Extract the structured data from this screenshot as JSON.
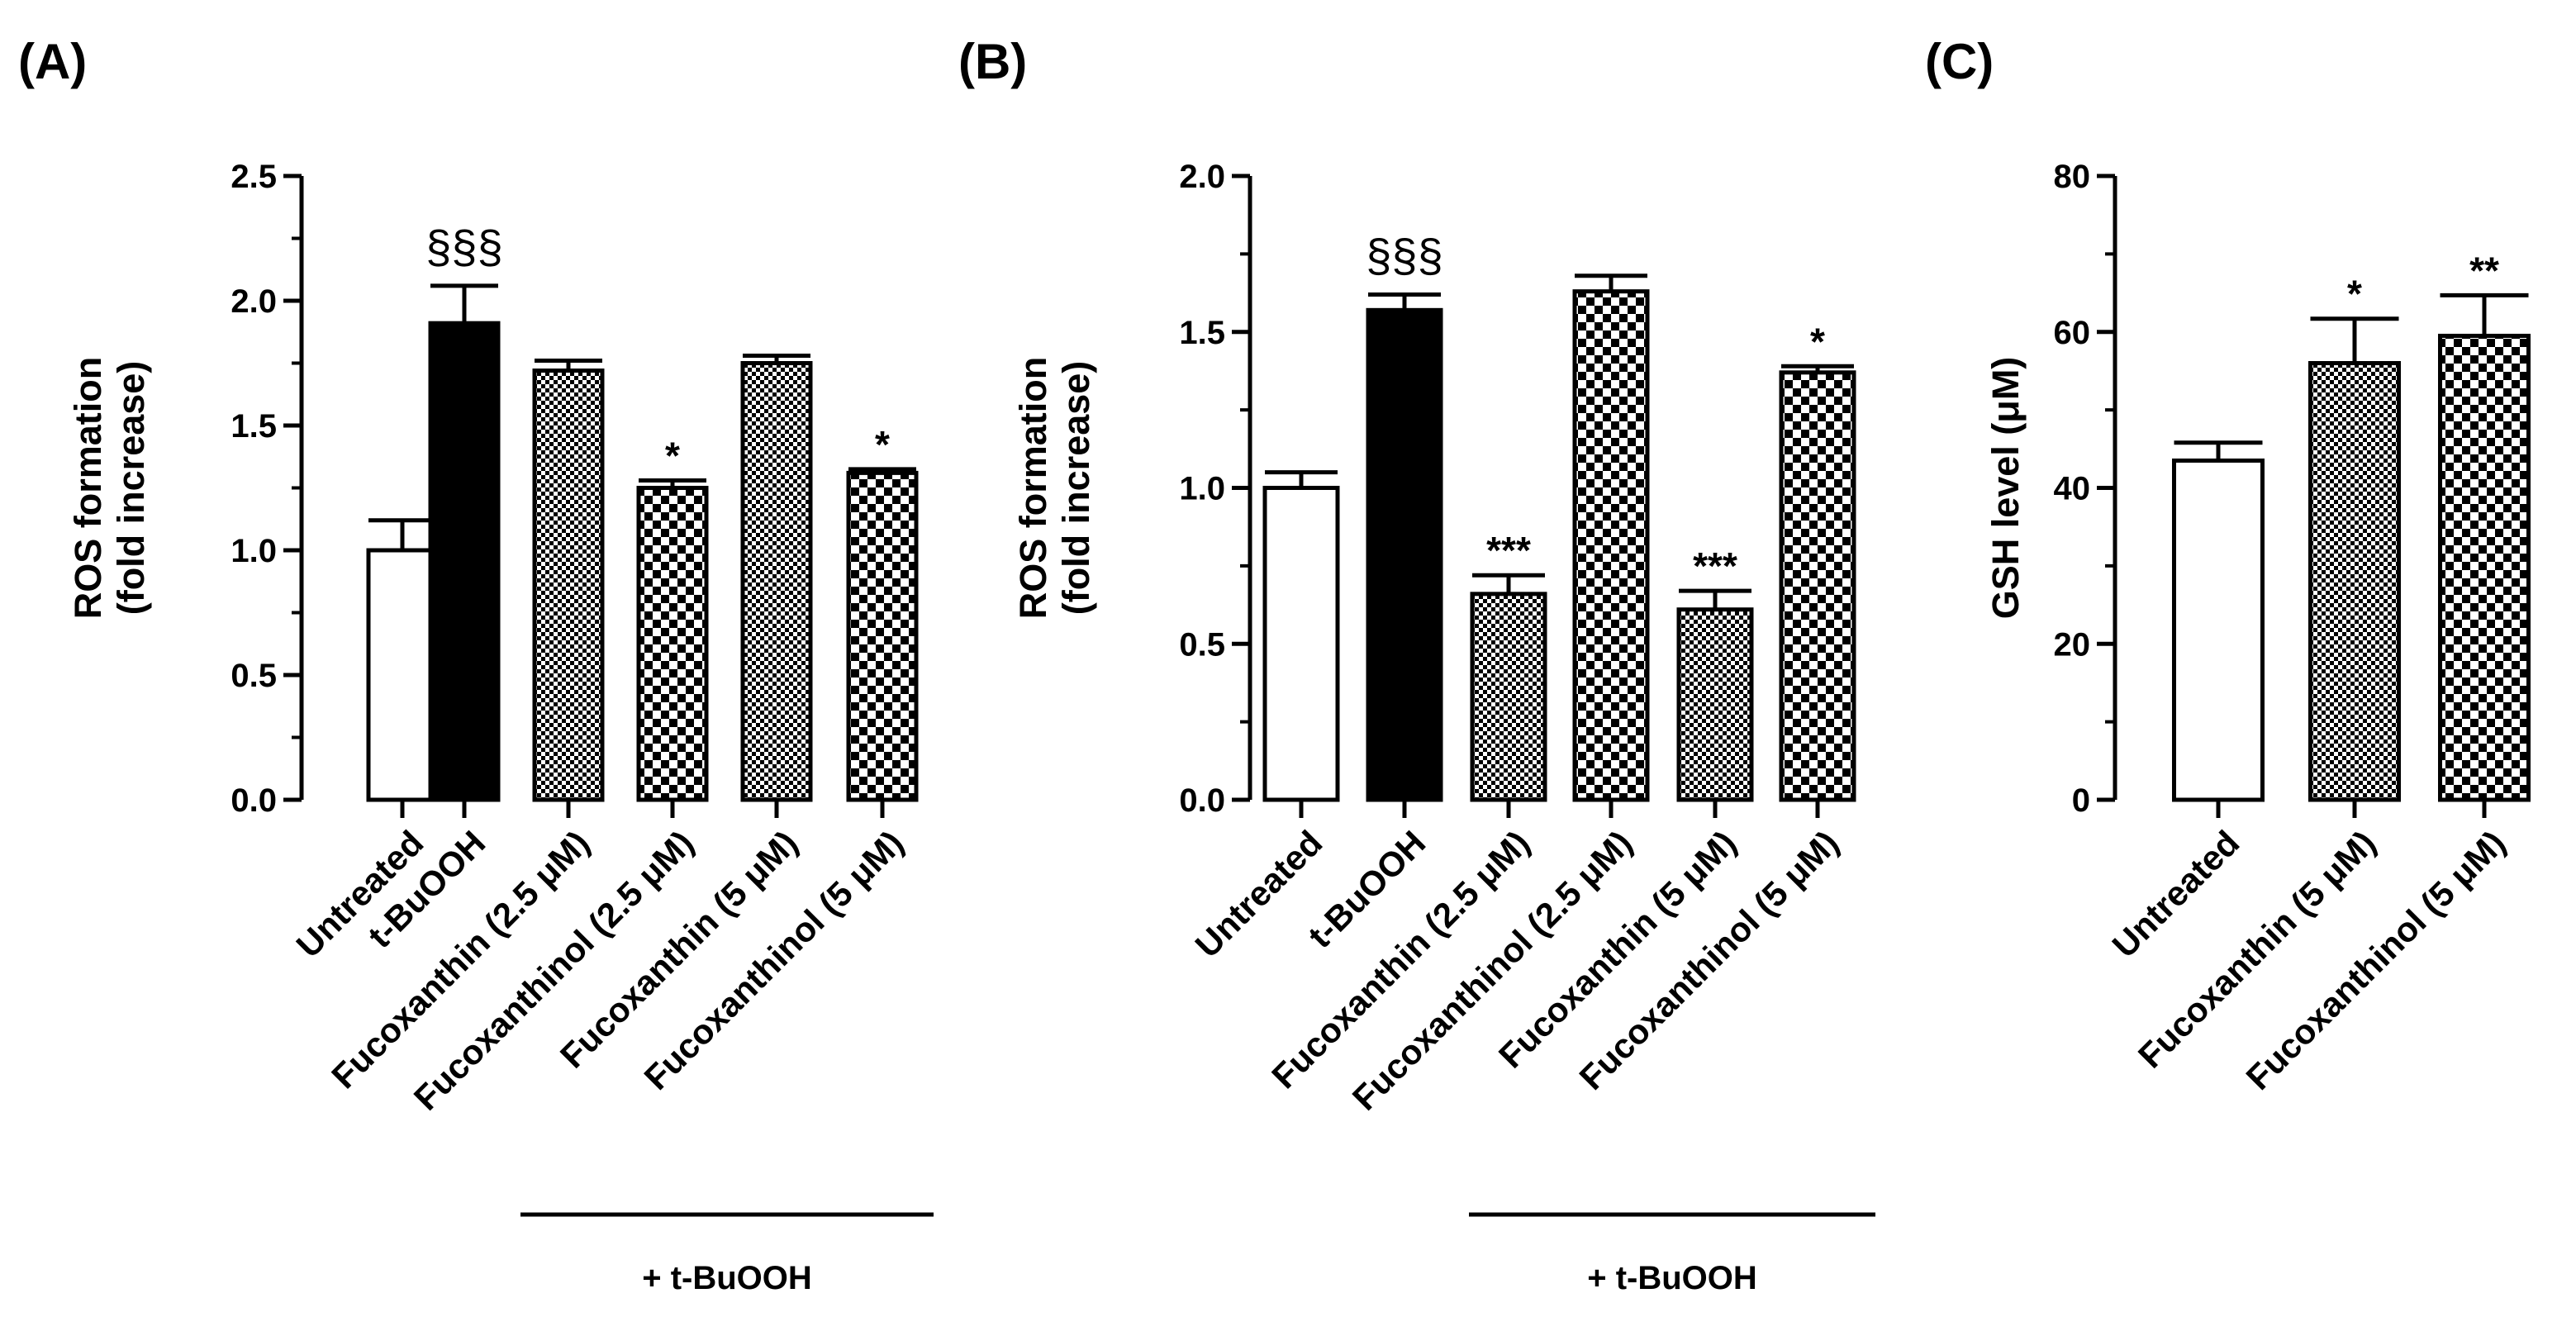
{
  "chart_data": [
    {
      "panel": "(A)",
      "type": "bar",
      "ylabel_lines": [
        "ROS formation",
        "(fold increase)"
      ],
      "ylim": [
        0,
        2.5
      ],
      "yticks": [
        "0.0",
        "0.5",
        "1.0",
        "1.5",
        "2.0",
        "2.5"
      ],
      "group_label": "+ t-BuOOH",
      "bars": [
        {
          "category": "Untreated",
          "value": 1.0,
          "error": 0.12,
          "pattern": "white",
          "sig": ""
        },
        {
          "category": "t-BuOOH",
          "value": 1.91,
          "error": 0.15,
          "pattern": "black",
          "sig": "§§§"
        },
        {
          "category": "Fucoxanthin (2.5 μM)",
          "value": 1.72,
          "error": 0.04,
          "pattern": "fine-check",
          "sig": ""
        },
        {
          "category": "Fucoxanthinol (2.5 μM)",
          "value": 1.25,
          "error": 0.03,
          "pattern": "coarse-check",
          "sig": "*"
        },
        {
          "category": "Fucoxanthin (5 μM)",
          "value": 1.75,
          "error": 0.03,
          "pattern": "fine-check",
          "sig": ""
        },
        {
          "category": "Fucoxanthinol (5 μM)",
          "value": 1.31,
          "error": 0.015,
          "pattern": "coarse-check",
          "sig": "*"
        }
      ]
    },
    {
      "panel": "(B)",
      "type": "bar",
      "ylabel_lines": [
        "ROS formation",
        "(fold increase)"
      ],
      "ylim": [
        0,
        2.0
      ],
      "yticks": [
        "0.0",
        "0.5",
        "1.0",
        "1.5",
        "2.0"
      ],
      "group_label": "+ t-BuOOH",
      "bars": [
        {
          "category": "Untreated",
          "value": 1.0,
          "error": 0.05,
          "pattern": "white",
          "sig": ""
        },
        {
          "category": "t-BuOOH",
          "value": 1.57,
          "error": 0.05,
          "pattern": "black",
          "sig": "§§§"
        },
        {
          "category": "Fucoxanthin (2.5 μM)",
          "value": 0.66,
          "error": 0.06,
          "pattern": "fine-check",
          "sig": "***"
        },
        {
          "category": "Fucoxanthinol (2.5 μM)",
          "value": 1.63,
          "error": 0.05,
          "pattern": "coarse-check",
          "sig": ""
        },
        {
          "category": "Fucoxanthin (5 μM)",
          "value": 0.61,
          "error": 0.06,
          "pattern": "fine-check",
          "sig": "***"
        },
        {
          "category": "Fucoxanthinol (5 μM)",
          "value": 1.37,
          "error": 0.02,
          "pattern": "coarse-check",
          "sig": "*"
        }
      ]
    },
    {
      "panel": "(C)",
      "type": "bar",
      "ylabel_lines": [
        "GSH level (μM)"
      ],
      "ylim": [
        0,
        80
      ],
      "yticks": [
        "0",
        "20",
        "40",
        "60",
        "80"
      ],
      "group_label": "",
      "bars": [
        {
          "category": "Untreated",
          "value": 43.5,
          "error": 2.3,
          "pattern": "white",
          "sig": ""
        },
        {
          "category": "Fucoxanthin (5 μM)",
          "value": 56.0,
          "error": 5.7,
          "pattern": "fine-check",
          "sig": "*"
        },
        {
          "category": "Fucoxanthinol (5 μM)",
          "value": 59.5,
          "error": 5.2,
          "pattern": "coarse-check",
          "sig": "**"
        }
      ]
    }
  ]
}
